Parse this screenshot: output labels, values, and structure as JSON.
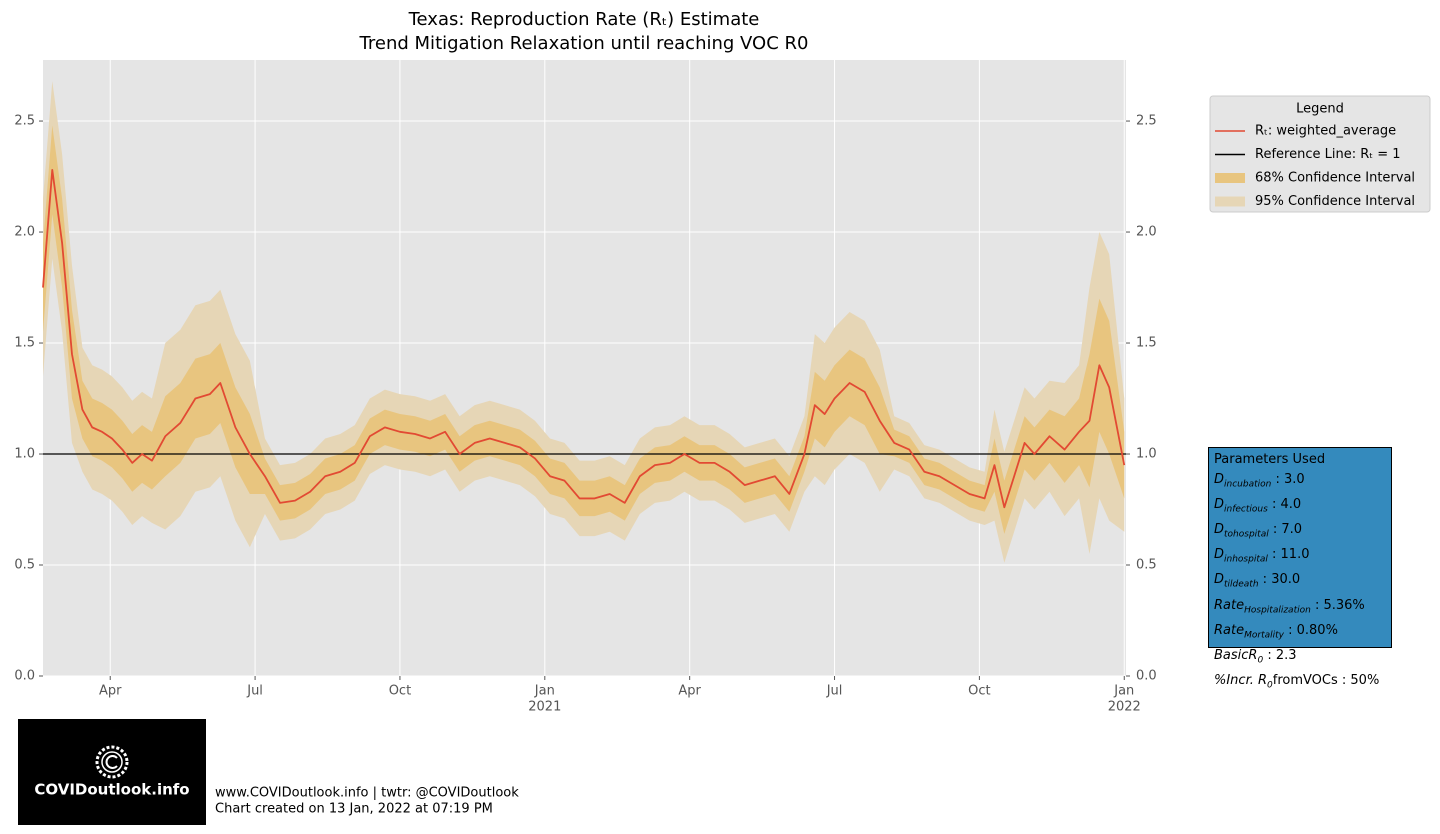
{
  "chart_data": {
    "type": "line",
    "title": "Texas: Reproduction Rate (Rₜ) Estimate",
    "subtitle": "Trend Mitigation Relaxation until reaching VOC R0",
    "x": [
      2020.134,
      2020.15,
      2020.167,
      2020.184,
      2020.202,
      2020.219,
      2020.236,
      2020.253,
      2020.271,
      2020.288,
      2020.305,
      2020.322,
      2020.345,
      2020.371,
      2020.397,
      2020.422,
      2020.44,
      2020.466,
      2020.491,
      2020.517,
      2020.543,
      2020.569,
      2020.595,
      2020.621,
      2020.647,
      2020.672,
      2020.698,
      2020.724,
      2020.75,
      2020.776,
      2020.802,
      2020.828,
      2020.853,
      2020.879,
      2020.905,
      2020.931,
      2020.957,
      2020.983,
      2021.009,
      2021.034,
      2021.06,
      2021.086,
      2021.112,
      2021.138,
      2021.164,
      2021.19,
      2021.216,
      2021.241,
      2021.267,
      2021.293,
      2021.319,
      2021.345,
      2021.371,
      2021.397,
      2021.422,
      2021.448,
      2021.466,
      2021.483,
      2021.5,
      2021.526,
      2021.552,
      2021.578,
      2021.603,
      2021.629,
      2021.655,
      2021.681,
      2021.707,
      2021.733,
      2021.759,
      2021.776,
      2021.793,
      2021.81,
      2021.828,
      2021.845,
      2021.871,
      2021.897,
      2021.922,
      2021.94,
      2021.957,
      2021.974,
      2022.0
    ],
    "series": [
      {
        "name": "Rₜ: weighted_average",
        "color": "#e24a33",
        "values": [
          1.75,
          2.28,
          1.95,
          1.45,
          1.2,
          1.12,
          1.1,
          1.07,
          1.02,
          0.96,
          1.0,
          0.97,
          1.08,
          1.14,
          1.25,
          1.27,
          1.32,
          1.12,
          1.0,
          0.9,
          0.78,
          0.79,
          0.83,
          0.9,
          0.92,
          0.96,
          1.08,
          1.12,
          1.1,
          1.09,
          1.07,
          1.1,
          1.0,
          1.05,
          1.07,
          1.05,
          1.03,
          0.98,
          0.9,
          0.88,
          0.8,
          0.8,
          0.82,
          0.78,
          0.9,
          0.95,
          0.96,
          1.0,
          0.96,
          0.96,
          0.92,
          0.86,
          0.88,
          0.9,
          0.82,
          1.0,
          1.22,
          1.18,
          1.25,
          1.32,
          1.28,
          1.15,
          1.05,
          1.02,
          0.92,
          0.9,
          0.86,
          0.82,
          0.8,
          0.95,
          0.76,
          0.9,
          1.05,
          1.0,
          1.08,
          1.02,
          1.1,
          1.15,
          1.4,
          1.3,
          0.95
        ]
      }
    ],
    "reference_line": {
      "name": "Reference Line: Rₜ = 1",
      "value": 1,
      "color": "#000000"
    },
    "bands": [
      {
        "name": "95% Confidence Interval",
        "color": "#e6d6b6",
        "lower": [
          1.35,
          1.88,
          1.55,
          1.05,
          0.92,
          0.84,
          0.82,
          0.79,
          0.74,
          0.68,
          0.72,
          0.69,
          0.66,
          0.72,
          0.83,
          0.85,
          0.9,
          0.7,
          0.58,
          0.73,
          0.61,
          0.62,
          0.66,
          0.73,
          0.75,
          0.79,
          0.91,
          0.95,
          0.93,
          0.92,
          0.9,
          0.93,
          0.83,
          0.88,
          0.9,
          0.88,
          0.86,
          0.81,
          0.73,
          0.71,
          0.63,
          0.63,
          0.65,
          0.61,
          0.73,
          0.78,
          0.79,
          0.83,
          0.79,
          0.79,
          0.75,
          0.69,
          0.71,
          0.73,
          0.65,
          0.83,
          0.9,
          0.86,
          0.93,
          1.0,
          0.96,
          0.83,
          0.93,
          0.9,
          0.8,
          0.78,
          0.74,
          0.7,
          0.68,
          0.7,
          0.51,
          0.65,
          0.8,
          0.75,
          0.83,
          0.72,
          0.8,
          0.55,
          0.8,
          0.7,
          0.65
        ],
        "upper": [
          2.15,
          2.68,
          2.35,
          1.85,
          1.48,
          1.4,
          1.38,
          1.35,
          1.3,
          1.24,
          1.28,
          1.25,
          1.5,
          1.56,
          1.67,
          1.69,
          1.74,
          1.54,
          1.42,
          1.07,
          0.95,
          0.96,
          1.0,
          1.07,
          1.09,
          1.13,
          1.25,
          1.29,
          1.27,
          1.26,
          1.24,
          1.27,
          1.17,
          1.22,
          1.24,
          1.22,
          1.2,
          1.15,
          1.07,
          1.05,
          0.97,
          0.97,
          0.99,
          0.95,
          1.07,
          1.12,
          1.13,
          1.17,
          1.13,
          1.13,
          1.09,
          1.03,
          1.05,
          1.07,
          0.99,
          1.17,
          1.54,
          1.5,
          1.57,
          1.64,
          1.6,
          1.47,
          1.17,
          1.14,
          1.04,
          1.02,
          0.98,
          0.94,
          0.92,
          1.2,
          1.01,
          1.15,
          1.3,
          1.25,
          1.33,
          1.32,
          1.4,
          1.75,
          2.0,
          1.9,
          1.25
        ]
      },
      {
        "name": "68% Confidence Interval",
        "color": "#e8c57f",
        "lower": [
          1.55,
          2.08,
          1.75,
          1.25,
          1.07,
          0.99,
          0.97,
          0.94,
          0.89,
          0.83,
          0.87,
          0.84,
          0.9,
          0.96,
          1.07,
          1.09,
          1.14,
          0.94,
          0.82,
          0.82,
          0.7,
          0.71,
          0.75,
          0.82,
          0.84,
          0.88,
          1.0,
          1.04,
          1.02,
          1.01,
          0.99,
          1.02,
          0.92,
          0.97,
          0.99,
          0.97,
          0.95,
          0.9,
          0.82,
          0.8,
          0.72,
          0.72,
          0.74,
          0.7,
          0.82,
          0.87,
          0.88,
          0.92,
          0.88,
          0.88,
          0.84,
          0.78,
          0.8,
          0.82,
          0.74,
          0.92,
          1.07,
          1.03,
          1.1,
          1.17,
          1.13,
          1.0,
          0.99,
          0.96,
          0.86,
          0.84,
          0.8,
          0.76,
          0.74,
          0.83,
          0.64,
          0.78,
          0.93,
          0.88,
          0.96,
          0.87,
          0.95,
          0.85,
          1.1,
          1.0,
          0.8
        ],
        "upper": [
          1.95,
          2.48,
          2.15,
          1.65,
          1.33,
          1.25,
          1.23,
          1.2,
          1.15,
          1.09,
          1.13,
          1.1,
          1.26,
          1.32,
          1.43,
          1.45,
          1.5,
          1.3,
          1.18,
          0.98,
          0.86,
          0.87,
          0.91,
          0.98,
          1.0,
          1.04,
          1.16,
          1.2,
          1.18,
          1.17,
          1.15,
          1.18,
          1.08,
          1.13,
          1.15,
          1.13,
          1.11,
          1.06,
          0.98,
          0.96,
          0.88,
          0.88,
          0.9,
          0.86,
          0.98,
          1.03,
          1.04,
          1.08,
          1.04,
          1.04,
          1.0,
          0.94,
          0.96,
          0.98,
          0.9,
          1.08,
          1.37,
          1.33,
          1.4,
          1.47,
          1.43,
          1.3,
          1.11,
          1.08,
          0.98,
          0.96,
          0.92,
          0.88,
          0.86,
          1.07,
          0.88,
          1.02,
          1.17,
          1.12,
          1.2,
          1.17,
          1.25,
          1.45,
          1.7,
          1.6,
          1.1
        ]
      }
    ],
    "xlim": [
      2020.134,
      2022.003
    ],
    "ylim": [
      0,
      2.775
    ],
    "yticks": [
      {
        "value": 0,
        "label": "0.0"
      },
      0.5,
      {
        "value": 1,
        "label": "1.0"
      },
      1.5,
      {
        "value": 2,
        "label": "2.0"
      },
      2.5
    ],
    "xticks": [
      {
        "value": 2020.25,
        "label": "Apr"
      },
      {
        "value": 2020.5,
        "label": "Jul"
      },
      {
        "value": 2020.75,
        "label": "Oct"
      },
      {
        "value": 2021.0,
        "label": "Jan"
      },
      {
        "value": 2021.25,
        "label": "Apr"
      },
      {
        "value": 2021.5,
        "label": "Jul"
      },
      {
        "value": 2021.75,
        "label": "Oct"
      },
      {
        "value": 2022.0,
        "label": "Jan"
      }
    ],
    "x_year_ticks": [
      2021,
      2022
    ],
    "grid": true,
    "legend": "upper right",
    "legend_title": "Legend",
    "parameters_title": "Parameters Used",
    "parameters": [
      {
        "name": "D",
        "sub": "incubation",
        "rest": " : 3.0"
      },
      {
        "name": "D",
        "sub": "infectious",
        "rest": " : 4.0"
      },
      {
        "name": "D",
        "sub": "tohospital",
        "rest": " : 7.0"
      },
      {
        "name": "D",
        "sub": "inhospital",
        "rest": " : 11.0"
      },
      {
        "name": "D",
        "sub": "tildeath",
        "rest": " : 30.0"
      },
      {
        "name": "Rate",
        "sub": "Hospitalization",
        "rest": " : 5.36%"
      },
      {
        "name": "Rate",
        "sub": "Mortality",
        "rest": " : 0.80%"
      },
      {
        "name": "BasicR",
        "sub": "0",
        "rest": " : 2.3"
      },
      {
        "name": "%Incr. R",
        "sub": "0",
        "rest": "fromVOCs : 50%"
      }
    ]
  },
  "footer": {
    "logo_text": "COVIDoutlook.info",
    "line1": "www.COVIDoutlook.info | twtr: @COVIDoutlook",
    "line2": "Chart created on 13 Jan, 2022 at 07:19 PM"
  }
}
